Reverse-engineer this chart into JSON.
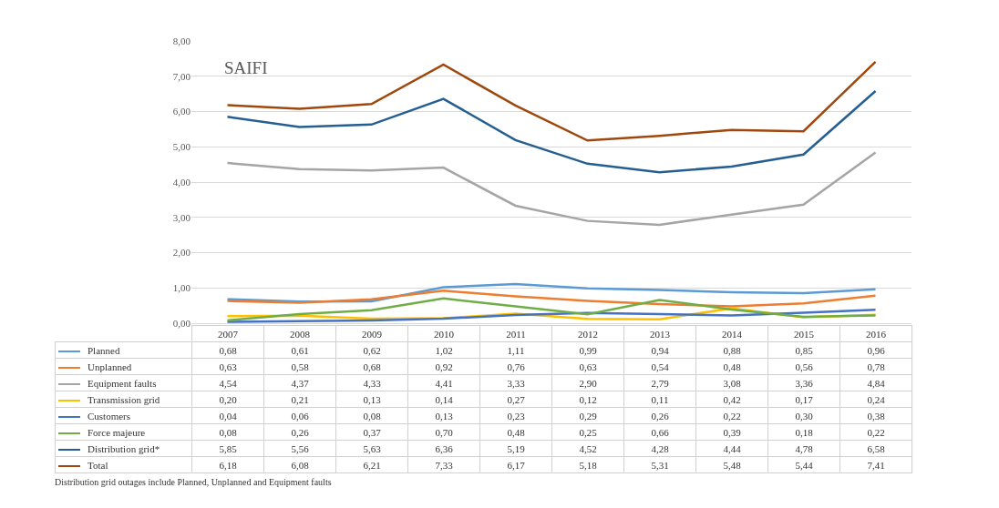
{
  "chart_data": {
    "type": "line",
    "title": "SAIFI",
    "categories": [
      "2007",
      "2008",
      "2009",
      "2010",
      "2011",
      "2012",
      "2013",
      "2014",
      "2015",
      "2016"
    ],
    "ylim": [
      0,
      8
    ],
    "yticks": [
      {
        "value": 0,
        "label": "0,00"
      },
      {
        "value": 1,
        "label": "1,00"
      },
      {
        "value": 2,
        "label": "2,00"
      },
      {
        "value": 3,
        "label": "3,00"
      },
      {
        "value": 4,
        "label": "4,00"
      },
      {
        "value": 5,
        "label": "5,00"
      },
      {
        "value": 6,
        "label": "6,00"
      },
      {
        "value": 7,
        "label": "7,00"
      },
      {
        "value": 8,
        "label": "8,00"
      }
    ],
    "grid": "y",
    "legend": "bottom left",
    "marker": "none",
    "line_style": "solid",
    "series": [
      {
        "name": "Planned",
        "color": "#5b9bd5",
        "values": [
          0.68,
          0.61,
          0.62,
          1.02,
          1.11,
          0.99,
          0.94,
          0.88,
          0.85,
          0.96
        ],
        "value_labels": [
          "0,68",
          "0,61",
          "0,62",
          "1,02",
          "1,11",
          "0,99",
          "0,94",
          "0,88",
          "0,85",
          "0,96"
        ]
      },
      {
        "name": "Unplanned",
        "color": "#ed7d31",
        "values": [
          0.63,
          0.58,
          0.68,
          0.92,
          0.76,
          0.63,
          0.54,
          0.48,
          0.56,
          0.78
        ],
        "value_labels": [
          "0,63",
          "0,58",
          "0,68",
          "0,92",
          "0,76",
          "0,63",
          "0,54",
          "0,48",
          "0,56",
          "0,78"
        ]
      },
      {
        "name": "Equipment faults",
        "color": "#a5a5a5",
        "values": [
          4.54,
          4.37,
          4.33,
          4.41,
          3.33,
          2.9,
          2.79,
          3.08,
          3.36,
          4.84
        ],
        "value_labels": [
          "4,54",
          "4,37",
          "4,33",
          "4,41",
          "3,33",
          "2,90",
          "2,79",
          "3,08",
          "3,36",
          "4,84"
        ]
      },
      {
        "name": "Transmission grid",
        "color": "#ffc000",
        "values": [
          0.2,
          0.21,
          0.13,
          0.14,
          0.27,
          0.12,
          0.11,
          0.42,
          0.17,
          0.24
        ],
        "value_labels": [
          "0,20",
          "0,21",
          "0,13",
          "0,14",
          "0,27",
          "0,12",
          "0,11",
          "0,42",
          "0,17",
          "0,24"
        ]
      },
      {
        "name": "Customers",
        "color": "#4472c4",
        "values": [
          0.04,
          0.06,
          0.08,
          0.13,
          0.23,
          0.29,
          0.26,
          0.22,
          0.3,
          0.38
        ],
        "value_labels": [
          "0,04",
          "0,06",
          "0,08",
          "0,13",
          "0,23",
          "0,29",
          "0,26",
          "0,22",
          "0,30",
          "0,38"
        ]
      },
      {
        "name": "Force majeure",
        "color": "#70ad47",
        "values": [
          0.08,
          0.26,
          0.37,
          0.7,
          0.48,
          0.25,
          0.66,
          0.39,
          0.18,
          0.22
        ],
        "value_labels": [
          "0,08",
          "0,26",
          "0,37",
          "0,70",
          "0,48",
          "0,25",
          "0,66",
          "0,39",
          "0,18",
          "0,22"
        ]
      },
      {
        "name": "Distribution grid*",
        "color": "#255e91",
        "values": [
          5.85,
          5.56,
          5.63,
          6.36,
          5.19,
          4.52,
          4.28,
          4.44,
          4.78,
          6.58
        ],
        "value_labels": [
          "5,85",
          "5,56",
          "5,63",
          "6,36",
          "5,19",
          "4,52",
          "4,28",
          "4,44",
          "4,78",
          "6,58"
        ]
      },
      {
        "name": "Total",
        "color": "#9e480e",
        "values": [
          6.18,
          6.08,
          6.21,
          7.33,
          6.17,
          5.18,
          5.31,
          5.48,
          5.44,
          7.41
        ],
        "value_labels": [
          "6,18",
          "6,08",
          "6,21",
          "7,33",
          "6,17",
          "5,18",
          "5,31",
          "5,48",
          "5,44",
          "7,41"
        ]
      }
    ],
    "annotations": [
      "Distribution grid outages include Planned, Unplanned and Equipment faults"
    ]
  }
}
